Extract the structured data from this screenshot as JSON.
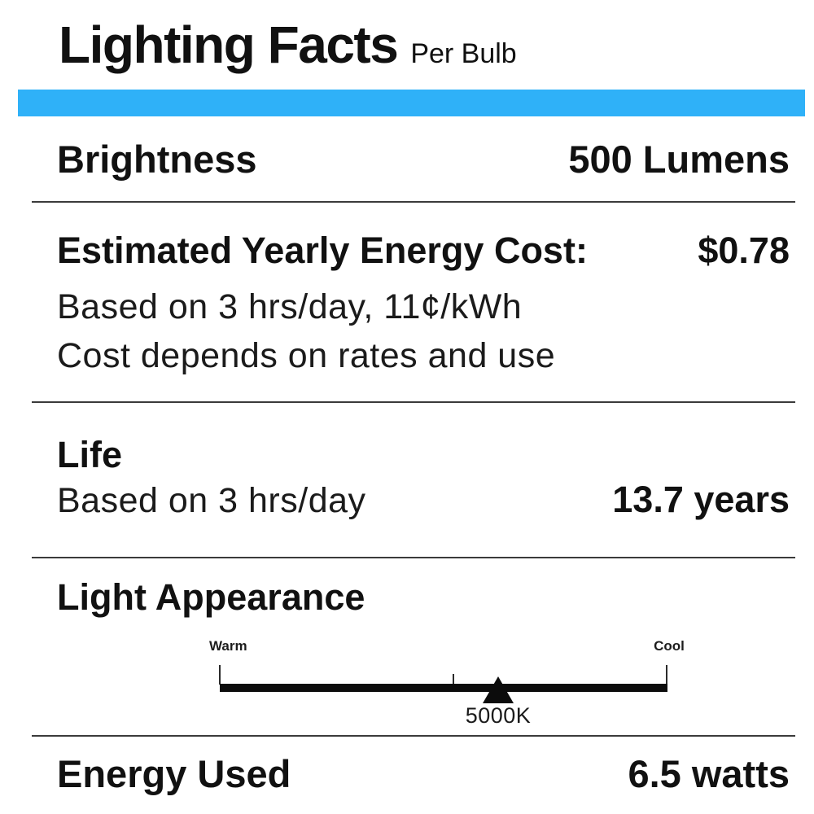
{
  "header": {
    "title": "Lighting Facts",
    "subtitle": "Per Bulb"
  },
  "colors": {
    "accent_bar": "#2FB1F8",
    "text": "#111111",
    "divider": "#3B3B3B"
  },
  "sections": {
    "brightness": {
      "label": "Brightness",
      "value": "500 Lumens"
    },
    "energy_cost": {
      "label": "Estimated Yearly Energy Cost:",
      "value": "$0.78",
      "notes": [
        "Based on 3 hrs/day, 11¢/kWh",
        "Cost depends on rates and use"
      ]
    },
    "life": {
      "label": "Life",
      "note": "Based on 3 hrs/day",
      "value": "13.7 years"
    },
    "light_appearance": {
      "label": "Light Appearance",
      "scale": {
        "left_label": "Warm",
        "right_label": "Cool",
        "marker_value": "5000K"
      }
    },
    "energy_used": {
      "label": "Energy Used",
      "value": "6.5 watts"
    }
  }
}
